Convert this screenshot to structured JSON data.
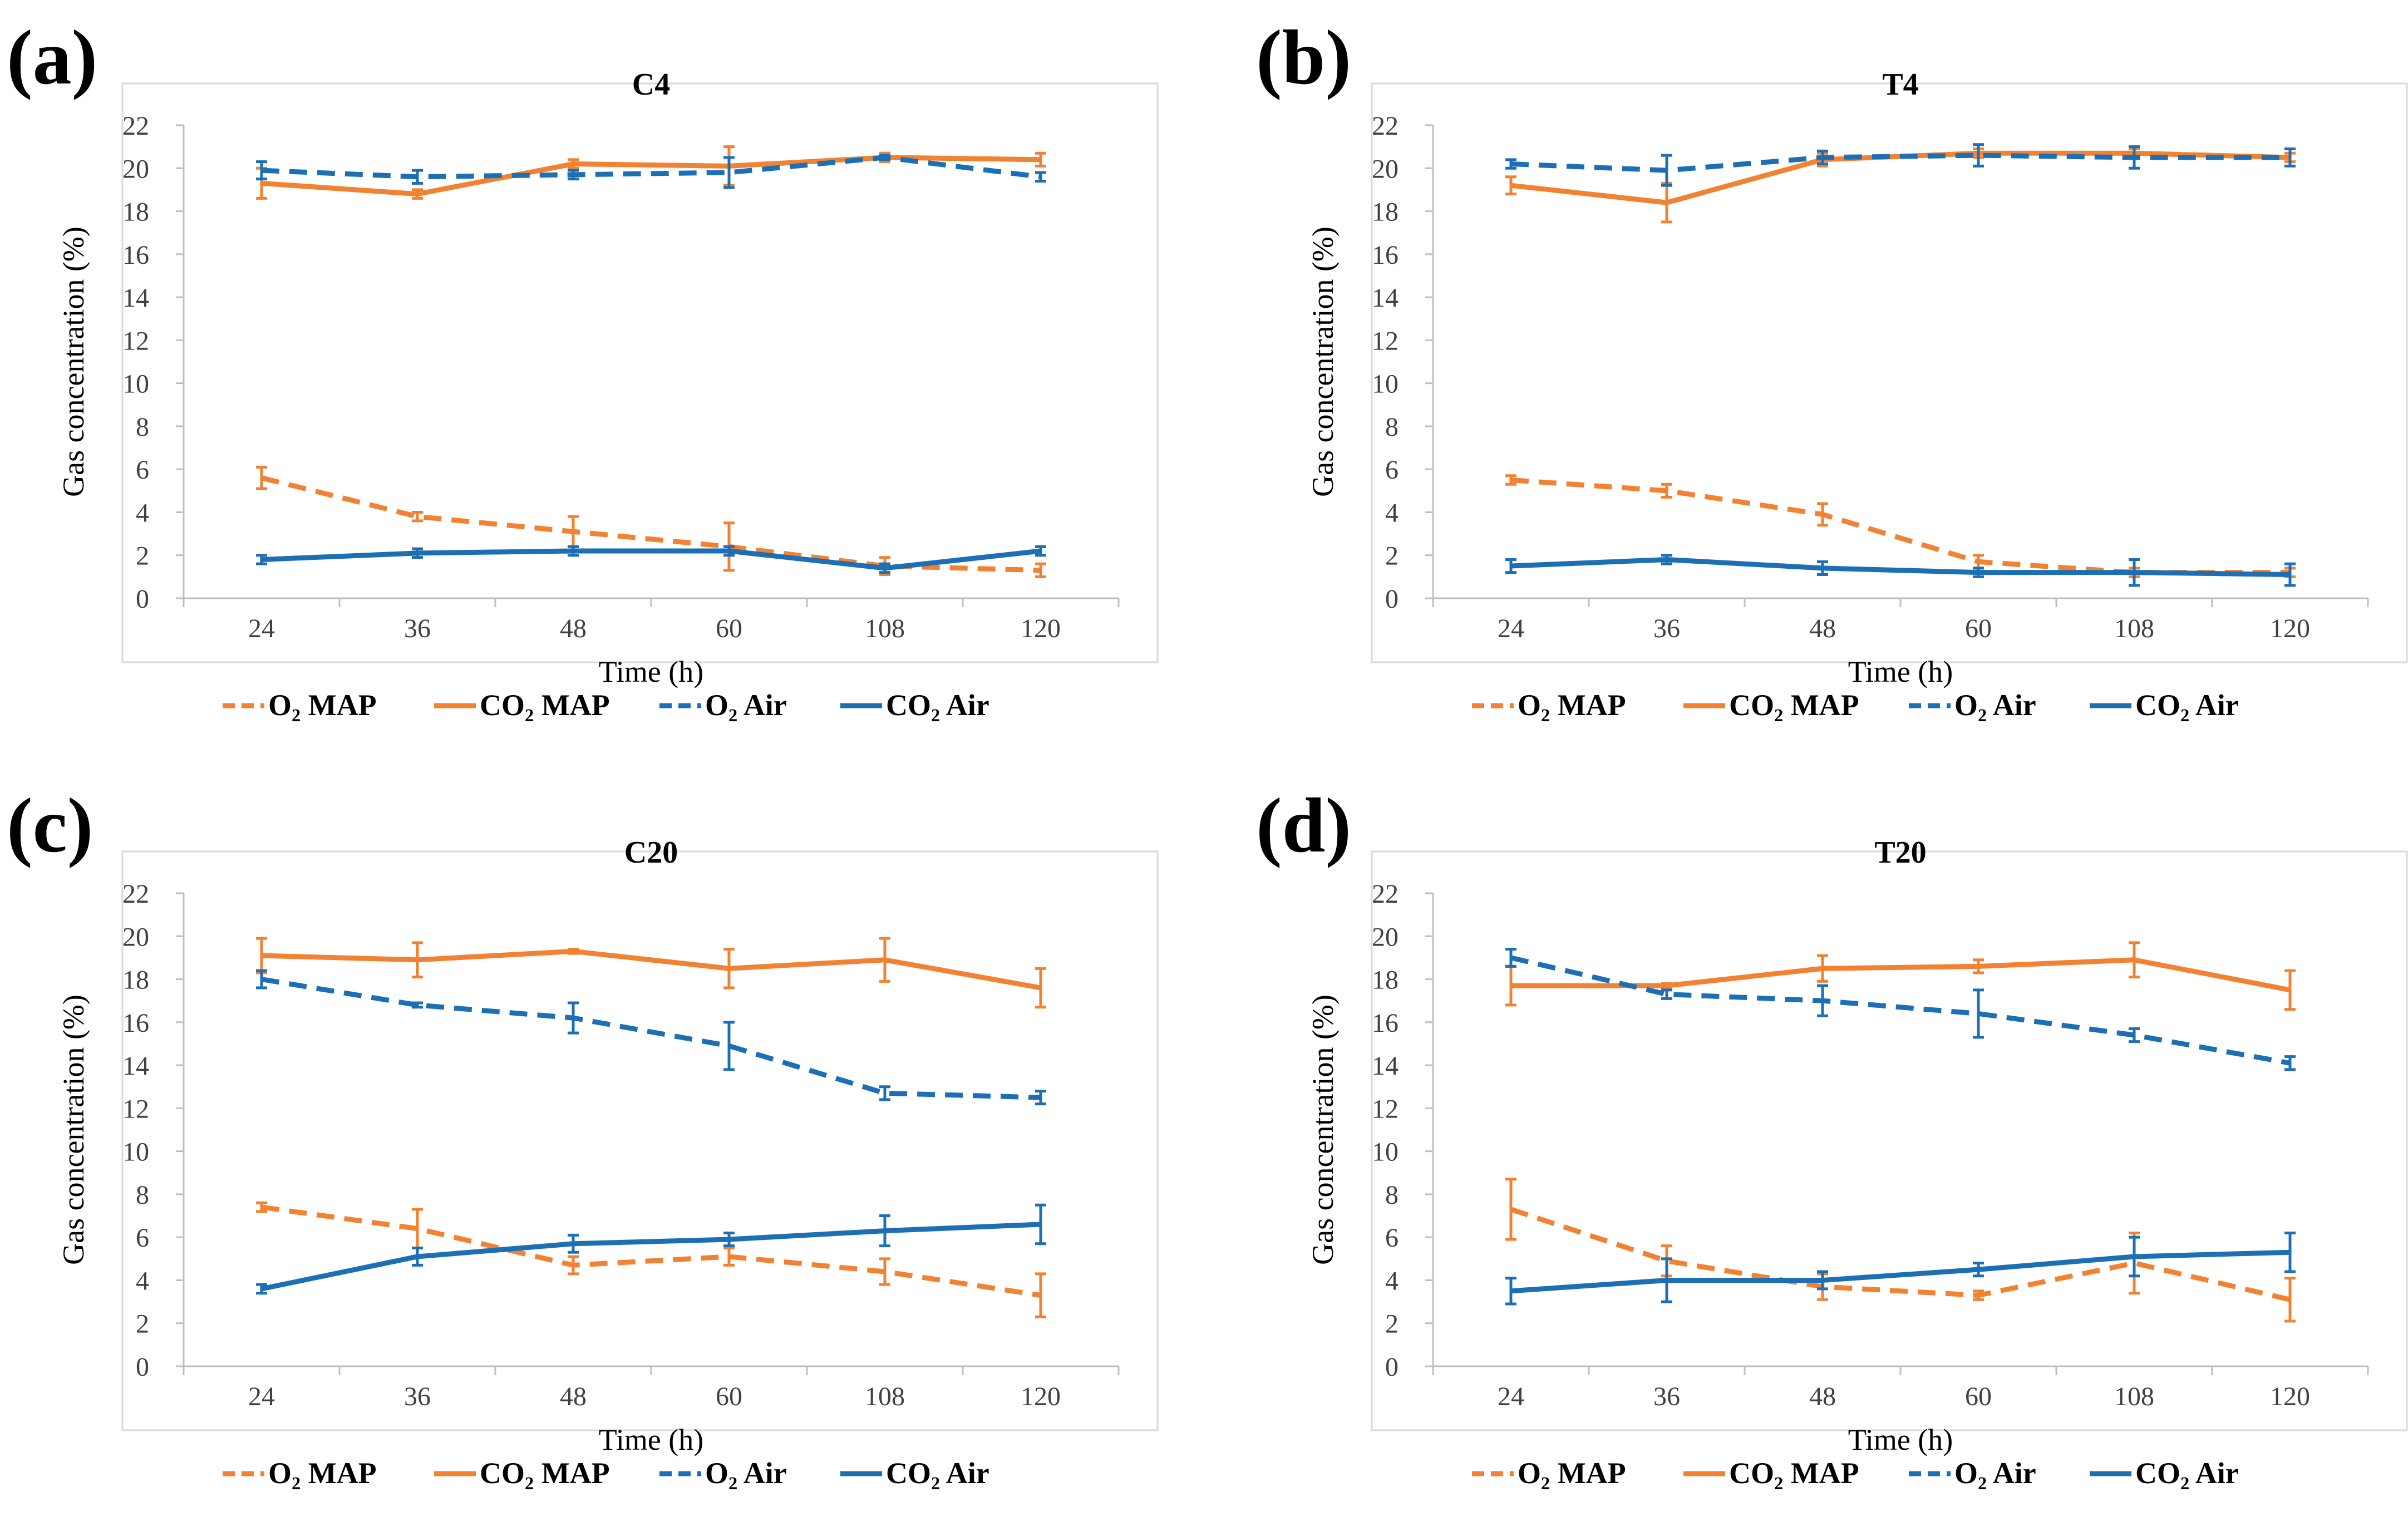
{
  "chart_data": [
    {
      "panel": "(a)",
      "title": "C4",
      "type": "line",
      "xlabel": "Time (h)",
      "ylabel": "Gas concentration  (%)",
      "categories": [
        "24",
        "36",
        "48",
        "60",
        "108",
        "120"
      ],
      "ylim": [
        0,
        22
      ],
      "yticks": [
        "0",
        "2",
        "4",
        "6",
        "8",
        "10",
        "12",
        "14",
        "16",
        "18",
        "20",
        "22"
      ],
      "legend": [
        "O₂ MAP",
        "CO₂ MAP",
        "O₂ Air",
        "CO₂ Air"
      ],
      "series": [
        {
          "name": "O₂ MAP",
          "color": "#F28232",
          "style": "dashed",
          "values": [
            5.6,
            3.8,
            3.1,
            2.4,
            1.5,
            1.3
          ],
          "errors": [
            0.5,
            0.2,
            0.7,
            1.1,
            0.4,
            0.3
          ]
        },
        {
          "name": "CO₂ MAP",
          "color": "#F28232",
          "style": "solid",
          "values": [
            19.3,
            18.8,
            20.2,
            20.1,
            20.5,
            20.4
          ],
          "errors": [
            0.7,
            0.2,
            0.2,
            0.9,
            0.2,
            0.3
          ]
        },
        {
          "name": "O₂ Air",
          "color": "#1C6FB5",
          "style": "dashed",
          "values": [
            19.9,
            19.6,
            19.7,
            19.8,
            20.5,
            19.6
          ],
          "errors": [
            0.4,
            0.3,
            0.2,
            0.7,
            0.1,
            0.2
          ]
        },
        {
          "name": "CO₂ Air",
          "color": "#1C6FB5",
          "style": "solid",
          "values": [
            1.8,
            2.1,
            2.2,
            2.2,
            1.4,
            2.2
          ],
          "errors": [
            0.2,
            0.2,
            0.2,
            0.2,
            0.2,
            0.2
          ]
        }
      ]
    },
    {
      "panel": "(b)",
      "title": "T4",
      "type": "line",
      "xlabel": "Time (h)",
      "ylabel": "Gas concentration  (%)",
      "categories": [
        "24",
        "36",
        "48",
        "60",
        "108",
        "120"
      ],
      "ylim": [
        0,
        22
      ],
      "yticks": [
        "0",
        "2",
        "4",
        "6",
        "8",
        "10",
        "12",
        "14",
        "16",
        "18",
        "20",
        "22"
      ],
      "legend": [
        "O₂ MAP",
        "CO₂ MAP",
        "O₂ Air",
        "CO₂ Air"
      ],
      "series": [
        {
          "name": "O₂ MAP",
          "color": "#F28232",
          "style": "dashed",
          "values": [
            5.5,
            5.0,
            3.9,
            1.7,
            1.2,
            1.2
          ],
          "errors": [
            0.2,
            0.3,
            0.5,
            0.3,
            0.2,
            0.2
          ]
        },
        {
          "name": "CO₂ MAP",
          "color": "#F28232",
          "style": "solid",
          "values": [
            19.2,
            18.4,
            20.4,
            20.7,
            20.7,
            20.5
          ],
          "errors": [
            0.4,
            0.9,
            0.3,
            0.2,
            0.2,
            0.2
          ]
        },
        {
          "name": "O₂ Air",
          "color": "#1C6FB5",
          "style": "dashed",
          "values": [
            20.2,
            19.9,
            20.5,
            20.6,
            20.5,
            20.5
          ],
          "errors": [
            0.2,
            0.7,
            0.3,
            0.5,
            0.5,
            0.4
          ]
        },
        {
          "name": "CO₂ Air",
          "color": "#1C6FB5",
          "style": "solid",
          "values": [
            1.5,
            1.8,
            1.4,
            1.2,
            1.2,
            1.1
          ],
          "errors": [
            0.3,
            0.2,
            0.3,
            0.2,
            0.6,
            0.5
          ]
        }
      ]
    },
    {
      "panel": "(c)",
      "title": "C20",
      "type": "line",
      "xlabel": "Time (h)",
      "ylabel": "Gas concentration  (%)",
      "categories": [
        "24",
        "36",
        "48",
        "60",
        "108",
        "120"
      ],
      "ylim": [
        0,
        22
      ],
      "yticks": [
        "0",
        "2",
        "4",
        "6",
        "8",
        "10",
        "12",
        "14",
        "16",
        "18",
        "20",
        "22"
      ],
      "legend": [
        "O₂ MAP",
        "CO₂ MAP",
        "O₂ Air",
        "CO₂ Air"
      ],
      "series": [
        {
          "name": "O₂ MAP",
          "color": "#F28232",
          "style": "dashed",
          "values": [
            7.4,
            6.4,
            4.7,
            5.1,
            4.4,
            3.3
          ],
          "errors": [
            0.2,
            0.9,
            0.4,
            0.4,
            0.6,
            1.0
          ]
        },
        {
          "name": "CO₂ MAP",
          "color": "#F28232",
          "style": "solid",
          "values": [
            19.1,
            18.9,
            19.3,
            18.5,
            18.9,
            17.6
          ],
          "errors": [
            0.8,
            0.8,
            0.1,
            0.9,
            1.0,
            0.9
          ]
        },
        {
          "name": "O₂ Air",
          "color": "#1C6FB5",
          "style": "dashed",
          "values": [
            18.0,
            16.8,
            16.2,
            14.9,
            12.7,
            12.5
          ],
          "errors": [
            0.4,
            0.1,
            0.7,
            1.1,
            0.3,
            0.3
          ]
        },
        {
          "name": "CO₂ Air",
          "color": "#1C6FB5",
          "style": "solid",
          "values": [
            3.6,
            5.1,
            5.7,
            5.9,
            6.3,
            6.6
          ],
          "errors": [
            0.2,
            0.4,
            0.4,
            0.3,
            0.7,
            0.9
          ]
        }
      ]
    },
    {
      "panel": "(d)",
      "title": "T20",
      "type": "line",
      "xlabel": "Time (h)",
      "ylabel": "Gas concentration  (%)",
      "categories": [
        "24",
        "36",
        "48",
        "60",
        "108",
        "120"
      ],
      "ylim": [
        0,
        22
      ],
      "yticks": [
        "0",
        "2",
        "4",
        "6",
        "8",
        "10",
        "12",
        "14",
        "16",
        "18",
        "20",
        "22"
      ],
      "legend": [
        "O₂ MAP",
        "CO₂ MAP",
        "O₂ Air",
        "CO₂ Air"
      ],
      "series": [
        {
          "name": "O₂ MAP",
          "color": "#F28232",
          "style": "dashed",
          "values": [
            7.3,
            4.9,
            3.7,
            3.3,
            4.8,
            3.1
          ],
          "errors": [
            1.4,
            0.7,
            0.6,
            0.2,
            1.4,
            1.0
          ]
        },
        {
          "name": "CO₂ MAP",
          "color": "#F28232",
          "style": "solid",
          "values": [
            17.7,
            17.7,
            18.5,
            18.6,
            18.9,
            17.5
          ],
          "errors": [
            0.9,
            0.1,
            0.6,
            0.3,
            0.8,
            0.9
          ]
        },
        {
          "name": "O₂ Air",
          "color": "#1C6FB5",
          "style": "dashed",
          "values": [
            19.0,
            17.3,
            17.0,
            16.4,
            15.4,
            14.1
          ],
          "errors": [
            0.4,
            0.2,
            0.7,
            1.1,
            0.3,
            0.3
          ]
        },
        {
          "name": "CO₂ Air",
          "color": "#1C6FB5",
          "style": "solid",
          "values": [
            3.5,
            4.0,
            4.0,
            4.5,
            5.1,
            5.3
          ],
          "errors": [
            0.6,
            1.0,
            0.4,
            0.3,
            0.9,
            0.9
          ]
        }
      ]
    }
  ]
}
